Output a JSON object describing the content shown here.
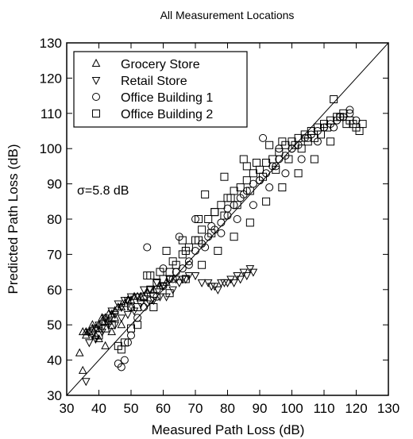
{
  "chart_data": {
    "type": "scatter",
    "title": "All Measurement Locations",
    "xlabel": "Measured Path Loss (dB)",
    "ylabel": "Predicted Path Loss (dB)",
    "xlim": [
      30,
      130
    ],
    "ylim": [
      30,
      130
    ],
    "xticks": [
      30,
      40,
      50,
      60,
      70,
      80,
      90,
      100,
      110,
      120,
      130
    ],
    "yticks": [
      30,
      40,
      50,
      60,
      70,
      80,
      90,
      100,
      110,
      120,
      130
    ],
    "grid": false,
    "legend_position": "top-left",
    "reference_line": "y = x",
    "annotation": "σ=5.8 dB",
    "series": [
      {
        "name": "Grocery Store",
        "marker": "triangle-up",
        "x": [
          34,
          35,
          36,
          37,
          38,
          39,
          40,
          41,
          42,
          43,
          44,
          45,
          46,
          47,
          48,
          49,
          50,
          51,
          52,
          53,
          55,
          57,
          59,
          61,
          40,
          42,
          44,
          47,
          35,
          36,
          37,
          38,
          39,
          41,
          43,
          45,
          50,
          54
        ],
        "y": [
          42,
          37,
          48,
          48,
          49,
          47,
          50,
          51,
          52,
          53,
          53,
          54,
          55,
          55,
          56,
          57,
          57,
          58,
          58,
          58,
          59,
          60,
          61,
          62,
          46,
          44,
          48,
          50,
          48,
          47,
          48,
          50,
          49,
          52,
          51,
          52,
          55,
          58
        ]
      },
      {
        "name": "Retail Store",
        "marker": "triangle-down",
        "x": [
          36,
          37,
          38,
          39,
          40,
          41,
          42,
          43,
          44,
          45,
          46,
          47,
          48,
          49,
          50,
          52,
          54,
          56,
          58,
          60,
          62,
          64,
          66,
          68,
          70,
          72,
          74,
          76,
          78,
          80,
          82,
          84,
          86,
          88,
          75,
          77,
          79,
          81,
          83,
          85,
          87,
          37,
          39,
          41,
          43,
          45,
          47,
          49,
          51,
          53,
          55,
          57,
          59,
          61,
          63,
          65,
          67
        ],
        "y": [
          34,
          48,
          47,
          49,
          50,
          49,
          52,
          51,
          54,
          53,
          56,
          55,
          57,
          57,
          58,
          58,
          60,
          60,
          62,
          61,
          63,
          63,
          63,
          64,
          64,
          62,
          62,
          61,
          62,
          62,
          62,
          63,
          64,
          65,
          61,
          60,
          62,
          63,
          64,
          65,
          66,
          45,
          46,
          48,
          50,
          50,
          52,
          53,
          54,
          56,
          56,
          57,
          58,
          58,
          60,
          62,
          63
        ]
      },
      {
        "name": "Office Building 1",
        "marker": "circle",
        "x": [
          46,
          47,
          48,
          49,
          50,
          52,
          54,
          56,
          58,
          60,
          62,
          64,
          66,
          68,
          70,
          72,
          74,
          76,
          78,
          80,
          82,
          84,
          86,
          88,
          90,
          92,
          94,
          96,
          98,
          100,
          102,
          104,
          106,
          108,
          110,
          112,
          114,
          116,
          118,
          120,
          55,
          60,
          65,
          70,
          75,
          80,
          85,
          90,
          95,
          100,
          105,
          110,
          115,
          50,
          58,
          63,
          68,
          73,
          78,
          83,
          88,
          93,
          98,
          103,
          108,
          113,
          118,
          96,
          91
        ],
        "y": [
          39,
          38,
          40,
          45,
          47,
          52,
          55,
          57,
          58,
          61,
          63,
          65,
          66,
          68,
          71,
          73,
          75,
          77,
          79,
          81,
          84,
          86,
          88,
          90,
          91,
          93,
          95,
          97,
          98,
          100,
          101,
          103,
          104,
          105,
          106,
          107,
          108,
          109,
          110,
          108,
          72,
          66,
          75,
          80,
          78,
          83,
          87,
          91,
          95,
          100,
          103,
          106,
          109,
          55,
          60,
          63,
          67,
          72,
          76,
          80,
          84,
          89,
          93,
          97,
          102,
          106,
          111,
          100,
          103
        ]
      },
      {
        "name": "Office Building 2",
        "marker": "square",
        "x": [
          40,
          42,
          44,
          46,
          48,
          50,
          52,
          54,
          56,
          58,
          60,
          62,
          64,
          66,
          68,
          70,
          72,
          74,
          76,
          78,
          80,
          82,
          84,
          86,
          88,
          90,
          92,
          94,
          96,
          98,
          100,
          102,
          104,
          106,
          108,
          110,
          112,
          114,
          116,
          118,
          120,
          121,
          122,
          55,
          59,
          63,
          67,
          71,
          75,
          79,
          83,
          87,
          91,
          95,
          99,
          103,
          107,
          111,
          115,
          119,
          47,
          52,
          57,
          62,
          67,
          72,
          77,
          82,
          87,
          92,
          97,
          102,
          107,
          112,
          117,
          56,
          61,
          66,
          71,
          76,
          81,
          86,
          73,
          79,
          85,
          89,
          93,
          97,
          101,
          105,
          109,
          113
        ],
        "y": [
          47,
          49,
          50,
          44,
          45,
          49,
          55,
          58,
          60,
          62,
          63,
          65,
          67,
          70,
          72,
          74,
          77,
          80,
          82,
          84,
          86,
          88,
          89,
          91,
          93,
          94,
          96,
          97,
          99,
          101,
          102,
          103,
          104,
          105,
          106,
          107,
          108,
          109,
          110,
          108,
          106,
          105,
          107,
          64,
          65,
          68,
          71,
          74,
          76,
          81,
          84,
          88,
          92,
          94,
          97,
          100,
          103,
          106,
          109,
          107,
          43,
          50,
          55,
          59,
          63,
          67,
          71,
          75,
          79,
          85,
          89,
          93,
          97,
          102,
          107,
          64,
          71,
          74,
          80,
          82,
          86,
          95,
          87,
          92,
          97,
          96,
          101,
          102,
          101,
          102,
          104,
          114
        ]
      }
    ]
  }
}
